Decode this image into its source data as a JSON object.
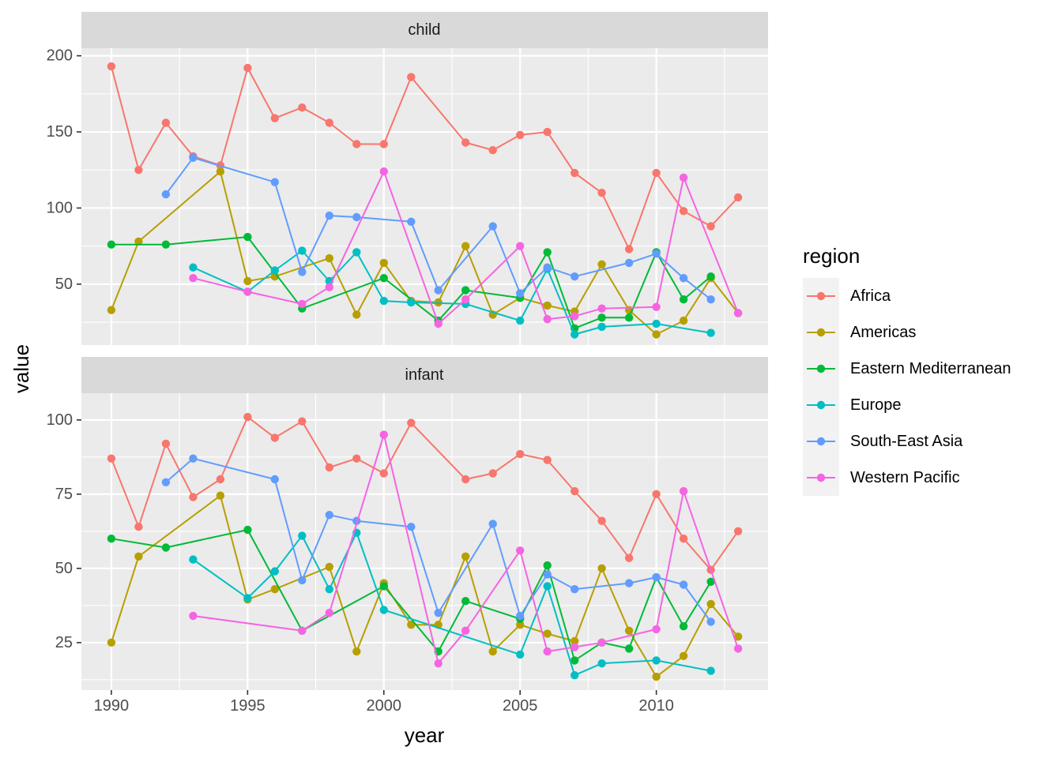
{
  "chart_data": {
    "type": "line",
    "facet_variable": "age_group",
    "xlabel": "year",
    "ylabel": "value",
    "legend_title": "region",
    "legend_position": "right",
    "grid": true,
    "x_ticks": [
      1990,
      1995,
      2000,
      2005,
      2010
    ],
    "series_colors": {
      "Africa": "#F8766D",
      "Americas": "#B79F00",
      "Eastern Mediterranean": "#00BA38",
      "Europe": "#00BFC4",
      "South-East Asia": "#619CFF",
      "Western Pacific": "#F564E3"
    },
    "panels": [
      {
        "label": "child",
        "ylim": [
          10,
          205
        ],
        "y_ticks": [
          50,
          100,
          150,
          200
        ],
        "series": [
          {
            "name": "Africa",
            "x": [
              1990,
              1991,
              1992,
              1993,
              1994,
              1995,
              1996,
              1997,
              1998,
              1999,
              2000,
              2001,
              2003,
              2004,
              2005,
              2006,
              2007,
              2008,
              2009,
              2010,
              2011,
              2012,
              2013
            ],
            "values": [
              193,
              125,
              156,
              134,
              128,
              192,
              159,
              166,
              156,
              142,
              142,
              186,
              143,
              138,
              148,
              150,
              123,
              110,
              73,
              123,
              98,
              88,
              107
            ]
          },
          {
            "name": "Americas",
            "x": [
              1990,
              1991,
              1994,
              1995,
              1996,
              1998,
              1999,
              2000,
              2001,
              2002,
              2003,
              2004,
              2005,
              2006,
              2007,
              2008,
              2009,
              2010,
              2011,
              2012,
              2013
            ],
            "values": [
              33,
              78,
              124,
              52,
              55,
              67,
              30,
              64,
              39,
              38,
              75,
              30,
              41,
              36,
              32,
              63,
              33,
              17,
              26,
              54,
              31
            ]
          },
          {
            "name": "Eastern Mediterranean",
            "x": [
              1990,
              1992,
              1995,
              1997,
              2000,
              2002,
              2003,
              2005,
              2006,
              2007,
              2008,
              2009,
              2010,
              2011,
              2012
            ],
            "values": [
              76,
              76,
              81,
              34,
              54,
              26,
              46,
              41,
              71,
              21,
              28,
              28,
              71,
              40,
              55
            ]
          },
          {
            "name": "Europe",
            "x": [
              1993,
              1995,
              1996,
              1997,
              1998,
              1999,
              2000,
              2001,
              2003,
              2005,
              2006,
              2007,
              2008,
              2010,
              2012
            ],
            "values": [
              61,
              45,
              59,
              72,
              52,
              71,
              39,
              38,
              37,
              26,
              60,
              17,
              22,
              24,
              18
            ]
          },
          {
            "name": "South-East Asia",
            "x": [
              1992,
              1993,
              1996,
              1997,
              1998,
              1999,
              2001,
              2002,
              2004,
              2005,
              2006,
              2007,
              2009,
              2010,
              2011,
              2012
            ],
            "values": [
              109,
              133,
              117,
              58,
              95,
              94,
              91,
              46,
              88,
              44,
              61,
              55,
              64,
              70,
              54,
              40
            ]
          },
          {
            "name": "Western Pacific",
            "x": [
              1993,
              1995,
              1997,
              1998,
              2000,
              2002,
              2003,
              2005,
              2006,
              2007,
              2008,
              2010,
              2011,
              2013
            ],
            "values": [
              54,
              45,
              37,
              48,
              124,
              24,
              40,
              75,
              27,
              29,
              34,
              35,
              120,
              31
            ]
          }
        ]
      },
      {
        "label": "infant",
        "ylim": [
          9,
          109
        ],
        "y_ticks": [
          25,
          50,
          75,
          100
        ],
        "series": [
          {
            "name": "Africa",
            "x": [
              1990,
              1991,
              1992,
              1993,
              1994,
              1995,
              1996,
              1997,
              1998,
              1999,
              2000,
              2001,
              2003,
              2004,
              2005,
              2006,
              2007,
              2008,
              2009,
              2010,
              2011,
              2012,
              2013
            ],
            "values": [
              87,
              64,
              92,
              74,
              80,
              101,
              94,
              99.5,
              84,
              87,
              82,
              99,
              80,
              82,
              88.5,
              86.5,
              76,
              66,
              53.5,
              75,
              60,
              49.5,
              62.5
            ]
          },
          {
            "name": "Americas",
            "x": [
              1990,
              1991,
              1994,
              1995,
              1996,
              1998,
              1999,
              2000,
              2001,
              2002,
              2003,
              2004,
              2005,
              2006,
              2007,
              2008,
              2009,
              2010,
              2011,
              2012,
              2013
            ],
            "values": [
              25,
              54,
              74.5,
              39.5,
              43,
              50.5,
              22,
              45,
              31,
              31,
              54,
              22,
              31,
              28,
              25.5,
              50,
              29,
              13.5,
              20.5,
              38,
              27
            ]
          },
          {
            "name": "Eastern Mediterranean",
            "x": [
              1990,
              1992,
              1995,
              1997,
              2000,
              2002,
              2003,
              2005,
              2006,
              2007,
              2008,
              2009,
              2010,
              2011,
              2012
            ],
            "values": [
              60,
              57,
              63,
              29,
              44,
              22,
              39,
              33,
              51,
              19,
              25,
              23,
              47,
              30.5,
              45.5
            ]
          },
          {
            "name": "Europe",
            "x": [
              1993,
              1995,
              1996,
              1997,
              1998,
              1999,
              2000,
              2005,
              2006,
              2007,
              2008,
              2010,
              2012
            ],
            "values": [
              53,
              40,
              49,
              61,
              43,
              62,
              36,
              21,
              44,
              14,
              18,
              19,
              15.5
            ]
          },
          {
            "name": "South-East Asia",
            "x": [
              1992,
              1993,
              1996,
              1997,
              1998,
              1999,
              2001,
              2002,
              2004,
              2005,
              2006,
              2007,
              2009,
              2010,
              2011,
              2012
            ],
            "values": [
              79,
              87,
              80,
              46,
              68,
              66,
              64,
              35,
              65,
              34,
              48,
              43,
              45,
              47,
              44.5,
              32
            ]
          },
          {
            "name": "Western Pacific",
            "x": [
              1993,
              1997,
              1998,
              2000,
              2002,
              2003,
              2005,
              2006,
              2007,
              2008,
              2010,
              2011,
              2013
            ],
            "values": [
              34,
              29,
              35,
              95,
              18,
              29,
              56,
              22,
              23.5,
              25,
              29.5,
              76,
              23
            ]
          }
        ]
      }
    ]
  }
}
